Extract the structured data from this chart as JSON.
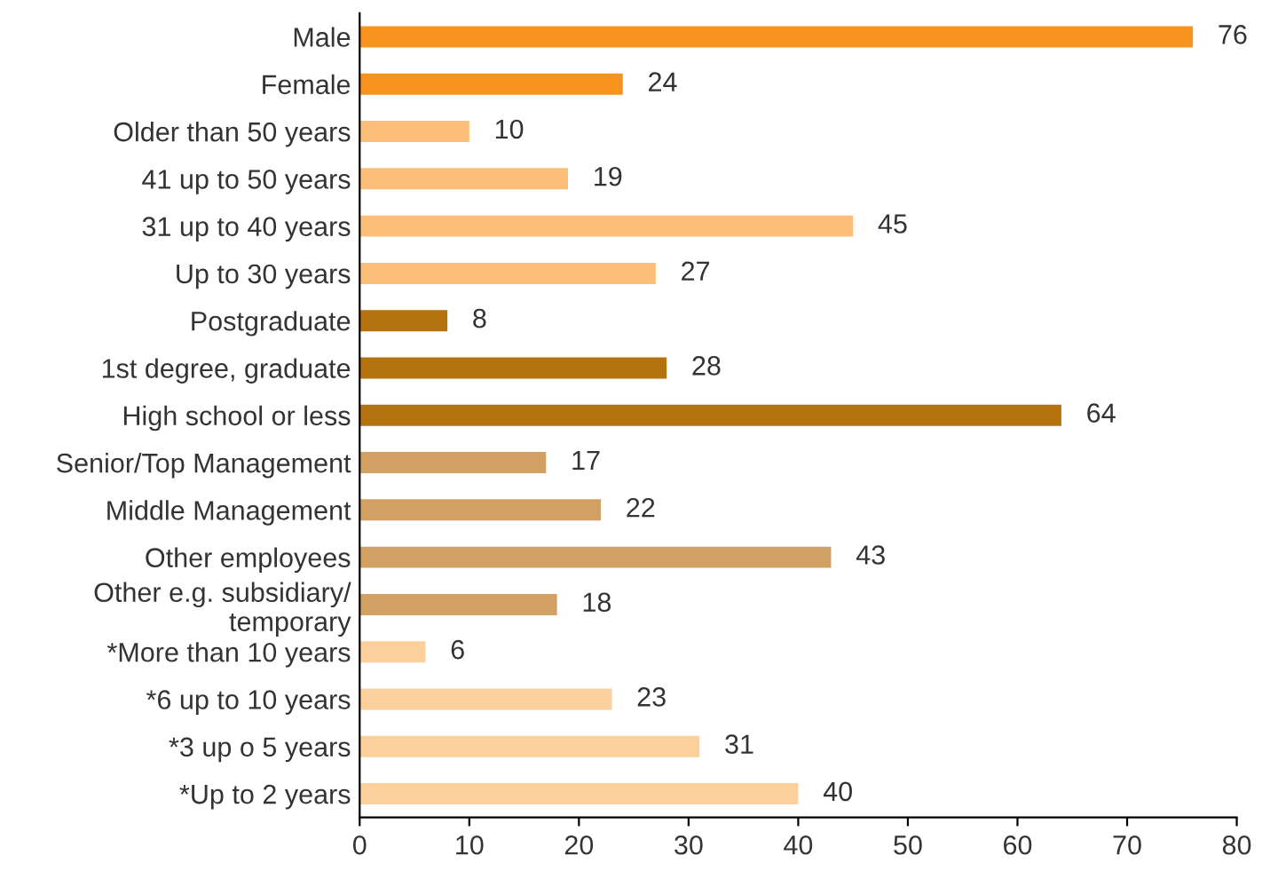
{
  "chart_data": {
    "type": "bar",
    "orientation": "horizontal",
    "categories": [
      "Male",
      "Female",
      "Older than 50 years",
      "41 up to 50 years",
      "31 up to 40 years",
      "Up to 30 years",
      "Postgraduate",
      "1st degree, graduate",
      "High school or less",
      "Senior/Top Management",
      "Middle Management",
      "Other employees",
      "Other e.g. subsidiary/\ntemporary",
      "*More than 10 years",
      "*6 up to 10 years",
      "*3 up o 5 years",
      "*Up to 2 years"
    ],
    "values": [
      76,
      24,
      10,
      19,
      45,
      27,
      8,
      28,
      64,
      17,
      22,
      43,
      18,
      6,
      23,
      31,
      40
    ],
    "colors": [
      "#f7941d",
      "#f7941d",
      "#fbbf77",
      "#fbbf77",
      "#fbbf77",
      "#fbbf77",
      "#b5730e",
      "#b5730e",
      "#b5730e",
      "#d1a163",
      "#d1a163",
      "#d1a163",
      "#d1a163",
      "#fcd09a",
      "#fcd09a",
      "#fcd09a",
      "#fcd09a"
    ],
    "xlim": [
      0,
      80
    ],
    "xticks": [
      0,
      10,
      20,
      30,
      40,
      50,
      60,
      70,
      80
    ],
    "data_labels": true,
    "grid": false,
    "legend": false
  }
}
